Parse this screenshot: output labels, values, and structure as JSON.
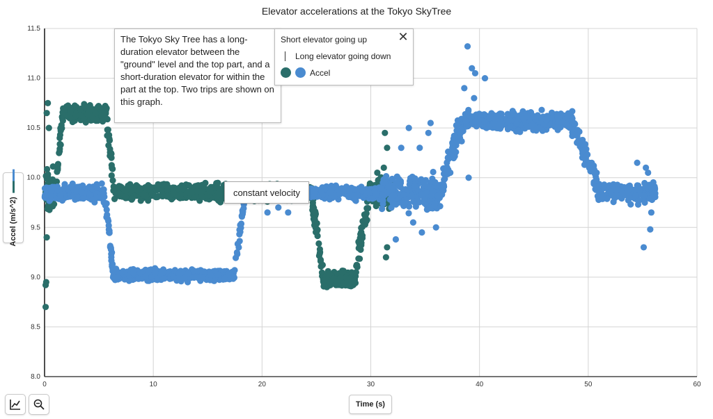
{
  "chart_data": {
    "type": "scatter",
    "title": "Elevator accelerations at the Tokyo SkyTree",
    "xlabel": "Time (s)",
    "ylabel": "Accel (m/s^2)",
    "xlim": [
      0,
      60
    ],
    "ylim": [
      8.0,
      11.5
    ],
    "x_ticks": [
      "0",
      "10",
      "20",
      "30",
      "40",
      "50",
      "60"
    ],
    "y_ticks": [
      "8.0",
      "8.5",
      "9.0",
      "9.5",
      "10.0",
      "10.5",
      "11.0",
      "11.5"
    ],
    "grid": true,
    "legend_position": "top-center",
    "series": [
      {
        "name": "Short elevator going up",
        "color": "#2a6e6a",
        "segments": [
          {
            "x0": 0.0,
            "x1": 1.1,
            "y": 9.85,
            "spread": 0.22,
            "n": 40
          },
          {
            "x0": 1.1,
            "x1": 1.6,
            "y0": 9.9,
            "y1": 10.6,
            "spread": 0.12,
            "n": 20
          },
          {
            "x0": 1.6,
            "x1": 5.7,
            "y": 10.65,
            "spread": 0.07,
            "n": 180
          },
          {
            "x0": 5.7,
            "x1": 6.4,
            "y0": 10.6,
            "y1": 9.9,
            "spread": 0.12,
            "n": 25
          },
          {
            "x0": 6.4,
            "x1": 24.5,
            "y": 9.85,
            "spread": 0.07,
            "n": 650
          },
          {
            "x0": 24.5,
            "x1": 25.6,
            "y0": 9.85,
            "y1": 9.05,
            "spread": 0.12,
            "n": 40
          },
          {
            "x0": 25.6,
            "x1": 28.6,
            "y": 8.98,
            "spread": 0.07,
            "n": 150
          },
          {
            "x0": 28.6,
            "x1": 29.8,
            "y0": 9.05,
            "y1": 9.8,
            "spread": 0.12,
            "n": 40
          },
          {
            "x0": 29.8,
            "x1": 32.0,
            "y": 9.85,
            "spread": 0.13,
            "n": 120
          }
        ],
        "outliers": [
          [
            0.1,
            8.7
          ],
          [
            0.1,
            8.92
          ],
          [
            0.15,
            8.95
          ],
          [
            0.2,
            9.4
          ],
          [
            0.3,
            10.75
          ],
          [
            0.2,
            10.65
          ],
          [
            0.4,
            10.5
          ],
          [
            31.3,
            10.45
          ],
          [
            31.5,
            10.3
          ],
          [
            31.2,
            10.1
          ],
          [
            31.5,
            9.3
          ],
          [
            31.4,
            9.2
          ],
          [
            30.6,
            10.05
          ]
        ]
      },
      {
        "name": "Long elevator going down",
        "color": "#4a8bd0",
        "segments": [
          {
            "x0": 0.0,
            "x1": 5.4,
            "y": 9.85,
            "spread": 0.07,
            "n": 220
          },
          {
            "x0": 5.4,
            "x1": 5.9,
            "y0": 9.85,
            "y1": 9.55,
            "spread": 0.06,
            "n": 15
          },
          {
            "x0": 5.9,
            "x1": 6.3,
            "y0": 9.5,
            "y1": 9.05,
            "spread": 0.06,
            "n": 20
          },
          {
            "x0": 6.3,
            "x1": 17.5,
            "y": 9.02,
            "spread": 0.05,
            "n": 400
          },
          {
            "x0": 17.5,
            "x1": 18.4,
            "y0": 9.1,
            "y1": 9.8,
            "spread": 0.08,
            "n": 25
          },
          {
            "x0": 18.4,
            "x1": 24.0,
            "y": 9.85,
            "spread": 0.05,
            "n": 160
          },
          {
            "x0": 24.0,
            "x1": 31.0,
            "y": 9.85,
            "spread": 0.06,
            "n": 220
          },
          {
            "x0": 31.0,
            "x1": 36.5,
            "y": 9.85,
            "spread": 0.16,
            "n": 200
          },
          {
            "x0": 36.5,
            "x1": 37.5,
            "y0": 9.9,
            "y1": 10.25,
            "spread": 0.13,
            "n": 30
          },
          {
            "x0": 37.5,
            "x1": 38.5,
            "y0": 10.25,
            "y1": 10.55,
            "spread": 0.13,
            "n": 40
          },
          {
            "x0": 38.5,
            "x1": 48.5,
            "y": 10.57,
            "spread": 0.08,
            "n": 420
          },
          {
            "x0": 48.5,
            "x1": 50.8,
            "y0": 10.55,
            "y1": 9.95,
            "spread": 0.09,
            "n": 70
          },
          {
            "x0": 50.8,
            "x1": 56.2,
            "y": 9.85,
            "spread": 0.08,
            "n": 180
          }
        ],
        "outliers": [
          [
            38.9,
            11.32
          ],
          [
            38.6,
            10.9
          ],
          [
            39.3,
            11.1
          ],
          [
            39.6,
            11.05
          ],
          [
            40.5,
            11.0
          ],
          [
            39.5,
            10.8
          ],
          [
            39.0,
            10.0
          ],
          [
            33.5,
            10.5
          ],
          [
            32.8,
            10.3
          ],
          [
            35.5,
            10.55
          ],
          [
            35.3,
            10.45
          ],
          [
            34.5,
            10.3
          ],
          [
            32.3,
            9.38
          ],
          [
            34.7,
            9.45
          ],
          [
            36.0,
            9.5
          ],
          [
            33.9,
            9.55
          ],
          [
            55.1,
            9.3
          ],
          [
            55.7,
            9.48
          ],
          [
            54.5,
            10.15
          ],
          [
            55.5,
            10.05
          ],
          [
            55.3,
            10.1
          ],
          [
            55.8,
            9.65
          ],
          [
            55.2,
            9.75
          ],
          [
            20.5,
            9.65
          ],
          [
            22.4,
            9.65
          ],
          [
            21.5,
            9.7
          ]
        ]
      }
    ],
    "annotations": [
      "The Tokyo Sky Tree has a long-duration elevator between the \"ground\" level and the top part, and a short-duration elevator for within the part at the top. Two trips are shown on this graph.",
      "constant velocity"
    ]
  },
  "legend": {
    "item1": "Short elevator going up",
    "item2": "Long elevator going down",
    "item3": "Accel"
  }
}
